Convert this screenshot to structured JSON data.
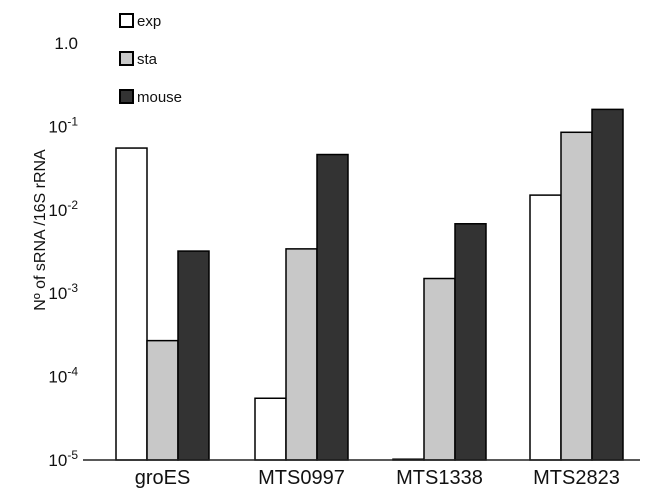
{
  "chart_data": {
    "type": "bar",
    "ylabel": "Nº of sRNA /16S rRNA",
    "yscale": "log",
    "ylim": [
      1e-05,
      1.0
    ],
    "y_ticks": [
      {
        "value": 1.0,
        "label": "1.0",
        "base": "",
        "exp": ""
      },
      {
        "value": 0.1,
        "label": "10-1",
        "base": "10",
        "exp": "-1"
      },
      {
        "value": 0.01,
        "label": "10-2",
        "base": "10",
        "exp": "-2"
      },
      {
        "value": 0.001,
        "label": "10-3",
        "base": "10",
        "exp": "-3"
      },
      {
        "value": 0.0001,
        "label": "10-4",
        "base": "10",
        "exp": "-4"
      },
      {
        "value": 1e-05,
        "label": "10-5",
        "base": "10",
        "exp": "-5"
      }
    ],
    "categories": [
      "groES",
      "MTS0997",
      "MTS1338",
      "MTS2823"
    ],
    "series": [
      {
        "name": "exp",
        "color": "#ffffff",
        "values": [
          0.055,
          5.5e-05,
          1e-05,
          0.015
        ]
      },
      {
        "name": "sta",
        "color": "#c8c8c8",
        "values": [
          0.00027,
          0.0034,
          0.0015,
          0.085
        ]
      },
      {
        "name": "mouse",
        "color": "#333333",
        "values": [
          0.0032,
          0.046,
          0.0068,
          0.16
        ]
      }
    ],
    "legend": "top-left",
    "grid": false
  }
}
